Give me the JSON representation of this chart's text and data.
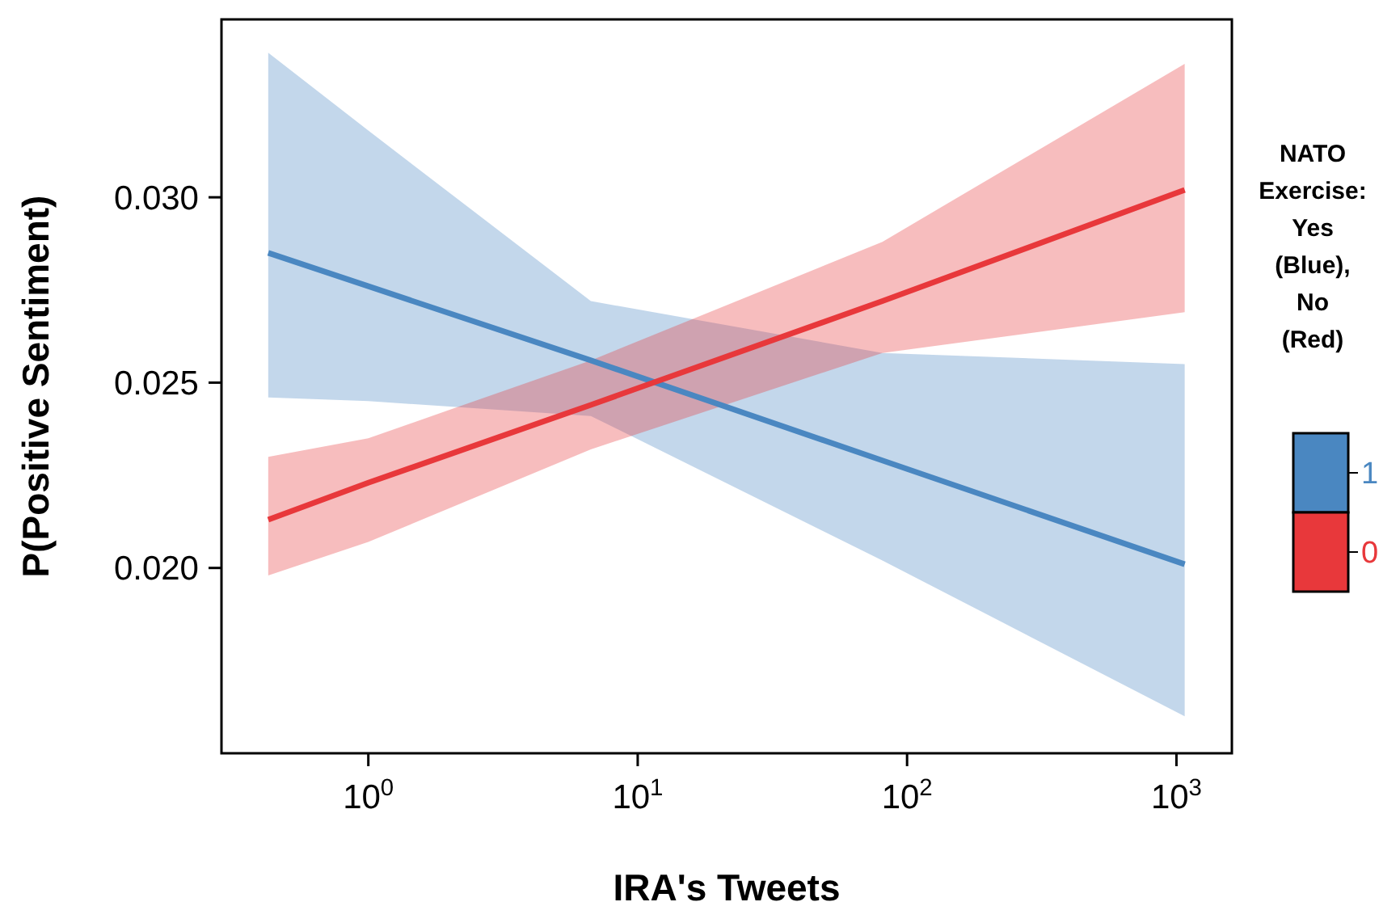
{
  "chart_data": {
    "type": "line",
    "xlabel": "IRA's Tweets",
    "ylabel": "P(Positive Sentiment)",
    "legend_title": "NATO Exercise: Yes (Blue), No (Red)",
    "legend": "right",
    "log": "x",
    "grid": false,
    "marker": "none",
    "line_style": "solid",
    "xlim": [
      0.285,
      1606
    ],
    "xticks": [
      {
        "value": 1,
        "label": "10$^{0}$"
      },
      {
        "value": 10,
        "label": "10$^{1}$"
      },
      {
        "value": 100,
        "label": "10$^{2}$"
      },
      {
        "value": 1000,
        "label": "10$^{3}$"
      }
    ],
    "ylim": [
      0.015,
      0.0348
    ],
    "yticks": [
      {
        "value": 0.02,
        "label": "0.020"
      },
      {
        "value": 0.025,
        "label": "0.025"
      },
      {
        "value": 0.03,
        "label": "0.030"
      }
    ],
    "x": [
      0.425,
      1,
      6.7,
      81,
      1073
    ],
    "series": [
      {
        "name": "1",
        "color": "#4a87c1",
        "values": [
          0.0285,
          0.0276,
          0.0256,
          0.0229,
          0.0201
        ],
        "lower": [
          0.0246,
          0.0245,
          0.0241,
          0.0202,
          0.016
        ],
        "upper": [
          0.0339,
          0.0318,
          0.0272,
          0.0258,
          0.0255
        ]
      },
      {
        "name": "0",
        "color": "#e8383b",
        "values": [
          0.0213,
          0.0223,
          0.0244,
          0.0272,
          0.0302
        ],
        "lower": [
          0.0198,
          0.0207,
          0.0232,
          0.0258,
          0.0269
        ],
        "upper": [
          0.023,
          0.0235,
          0.0256,
          0.0288,
          0.0336
        ]
      }
    ]
  }
}
